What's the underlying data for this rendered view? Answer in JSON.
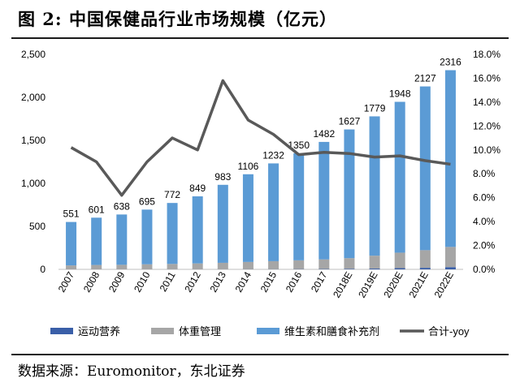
{
  "title": "图  2:  中国保健品行业市场规模（亿元）",
  "source": "数据来源：Euromonitor，东北证券",
  "chart_data": {
    "type": "bar",
    "stacked": true,
    "categories": [
      "2007",
      "2008",
      "2009",
      "2010",
      "2011",
      "2012",
      "2013",
      "2014",
      "2015",
      "2016",
      "2017",
      "2018E",
      "2019E",
      "2020E",
      "2021E",
      "2022E"
    ],
    "series": [
      {
        "name": "运动营养",
        "color": "#3a5fa8",
        "values": [
          1,
          1,
          1,
          1,
          1,
          1,
          1,
          2,
          2,
          3,
          4,
          6,
          9,
          14,
          18,
          26
        ]
      },
      {
        "name": "体重管理",
        "color": "#a6a6a6",
        "values": [
          45,
          50,
          52,
          58,
          62,
          68,
          75,
          84,
          93,
          102,
          112,
          124,
          150,
          180,
          205,
          235
        ]
      },
      {
        "name": "维生素和膳食补充剂",
        "color": "#5b9bd5",
        "values": [
          505,
          550,
          585,
          636,
          709,
          780,
          907,
          1020,
          1137,
          1245,
          1366,
          1497,
          1620,
          1754,
          1904,
          2055
        ]
      }
    ],
    "totals": [
      551,
      601,
      638,
      695,
      772,
      849,
      983,
      1106,
      1232,
      1350,
      1482,
      1627,
      1779,
      1948,
      2127,
      2316
    ],
    "line": {
      "name": "合计-yoy",
      "color": "#595959",
      "values": [
        10.2,
        9.0,
        6.2,
        9.0,
        11.0,
        10.0,
        15.8,
        12.5,
        11.3,
        9.6,
        9.8,
        9.7,
        9.4,
        9.5,
        9.1,
        8.8
      ]
    },
    "y_left": {
      "min": 0,
      "max": 2500,
      "ticks": [
        "0",
        "500",
        "1,000",
        "1,500",
        "2,000",
        "2,500"
      ]
    },
    "y_right": {
      "min": 0,
      "max": 18,
      "ticks": [
        "0.0%",
        "2.0%",
        "4.0%",
        "6.0%",
        "8.0%",
        "10.0%",
        "12.0%",
        "14.0%",
        "16.0%",
        "18.0%"
      ]
    },
    "legend_position": "bottom"
  }
}
